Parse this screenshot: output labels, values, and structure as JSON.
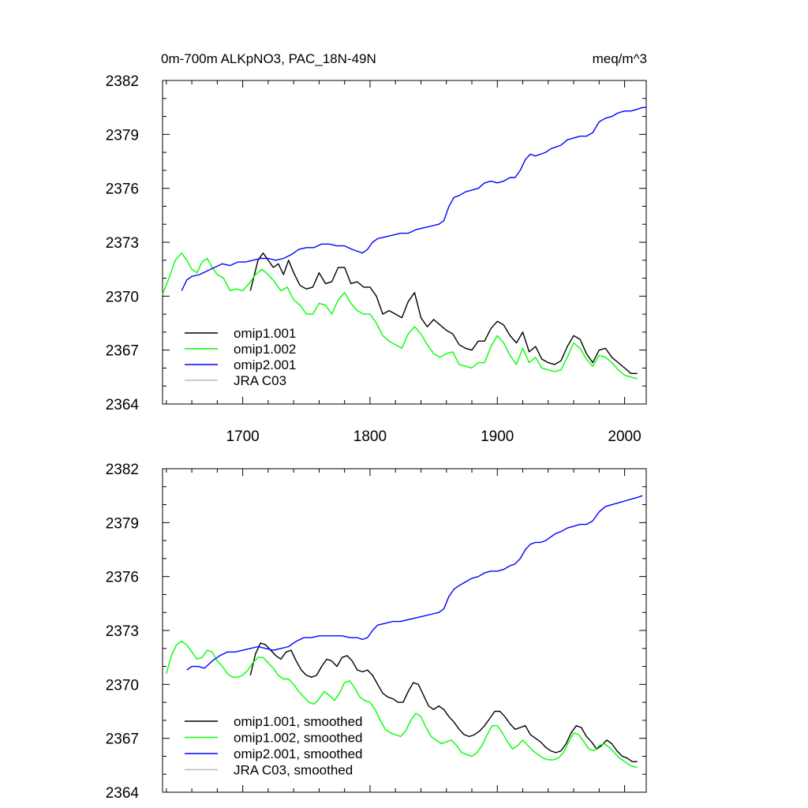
{
  "chart_data": [
    {
      "type": "line",
      "title": "0m-700m ALKpNO3, PAC_18N-49N",
      "units": "meq/m^3",
      "xlim": [
        1637,
        2017
      ],
      "ylim": [
        2364,
        2382
      ],
      "x_ticks": [
        "1700",
        "1800",
        "1900",
        "2000"
      ],
      "y_ticks": [
        "2364",
        "2367",
        "2370",
        "2373",
        "2376",
        "2379",
        "2382"
      ],
      "legend_position": "bottom-left",
      "series": [
        {
          "name": "omip1.001",
          "color": "#000000",
          "x": [
            1706,
            1712,
            1716,
            1720,
            1724,
            1728,
            1732,
            1736,
            1740,
            1745,
            1750,
            1755,
            1760,
            1765,
            1770,
            1775,
            1780,
            1785,
            1790,
            1795,
            1800,
            1805,
            1810,
            1815,
            1820,
            1825,
            1830,
            1835,
            1840,
            1845,
            1850,
            1855,
            1860,
            1865,
            1870,
            1875,
            1880,
            1885,
            1890,
            1895,
            1900,
            1905,
            1910,
            1915,
            1920,
            1925,
            1930,
            1935,
            1940,
            1945,
            1950,
            1955,
            1960,
            1965,
            1970,
            1975,
            1980,
            1985,
            1990,
            1995,
            2000,
            2005,
            2010
          ],
          "y": [
            2370.3,
            2372.0,
            2372.4,
            2372.0,
            2371.6,
            2371.8,
            2371.2,
            2372.0,
            2371.3,
            2370.6,
            2370.4,
            2370.5,
            2371.3,
            2370.7,
            2370.8,
            2371.6,
            2371.6,
            2370.7,
            2370.8,
            2370.5,
            2370.5,
            2370.0,
            2369.0,
            2369.2,
            2369.0,
            2368.8,
            2369.7,
            2370.2,
            2368.8,
            2368.3,
            2368.7,
            2368.4,
            2368.1,
            2367.9,
            2367.3,
            2367.1,
            2367.0,
            2367.5,
            2367.5,
            2368.2,
            2368.6,
            2368.4,
            2367.8,
            2367.4,
            2368.0,
            2366.9,
            2367.2,
            2366.5,
            2366.3,
            2366.2,
            2366.4,
            2367.2,
            2367.8,
            2367.6,
            2366.8,
            2366.3,
            2367.0,
            2367.1,
            2366.6,
            2366.3,
            2366.0,
            2365.7,
            2365.7
          ]
        },
        {
          "name": "omip1.002",
          "color": "#00ff00",
          "x": [
            1637,
            1642,
            1647,
            1652,
            1656,
            1660,
            1664,
            1668,
            1672,
            1676,
            1680,
            1685,
            1690,
            1695,
            1700,
            1705,
            1710,
            1715,
            1720,
            1725,
            1730,
            1735,
            1740,
            1745,
            1750,
            1755,
            1760,
            1765,
            1770,
            1775,
            1780,
            1785,
            1790,
            1795,
            1800,
            1805,
            1810,
            1815,
            1820,
            1825,
            1830,
            1835,
            1840,
            1845,
            1850,
            1855,
            1860,
            1865,
            1870,
            1875,
            1880,
            1885,
            1890,
            1895,
            1900,
            1905,
            1910,
            1915,
            1920,
            1925,
            1930,
            1935,
            1940,
            1945,
            1950,
            1955,
            1960,
            1965,
            1970,
            1975,
            1980,
            1985,
            1990,
            1995,
            2000,
            2005,
            2010
          ],
          "y": [
            2370.1,
            2371.0,
            2372.0,
            2372.4,
            2372.0,
            2371.5,
            2371.3,
            2371.9,
            2372.1,
            2371.6,
            2371.2,
            2371.0,
            2370.3,
            2370.4,
            2370.3,
            2370.7,
            2371.2,
            2371.5,
            2371.2,
            2370.8,
            2370.3,
            2370.5,
            2369.8,
            2369.5,
            2369.0,
            2369.0,
            2369.6,
            2369.5,
            2369.0,
            2369.8,
            2370.2,
            2369.6,
            2369.2,
            2369.0,
            2369.0,
            2368.5,
            2367.8,
            2367.5,
            2367.3,
            2367.1,
            2367.9,
            2368.3,
            2367.9,
            2367.3,
            2366.8,
            2366.6,
            2366.8,
            2366.9,
            2366.2,
            2366.1,
            2366.0,
            2366.3,
            2366.3,
            2367.2,
            2367.8,
            2367.4,
            2366.7,
            2366.2,
            2367.1,
            2366.3,
            2366.6,
            2366.0,
            2365.9,
            2365.8,
            2365.9,
            2366.6,
            2367.4,
            2367.1,
            2366.5,
            2366.1,
            2366.7,
            2366.6,
            2366.3,
            2365.9,
            2365.6,
            2365.5,
            2365.4
          ]
        },
        {
          "name": "omip2.001",
          "color": "#0000ff",
          "x": [
            1652,
            1656,
            1660,
            1666,
            1672,
            1678,
            1684,
            1690,
            1696,
            1702,
            1708,
            1714,
            1720,
            1726,
            1732,
            1738,
            1744,
            1750,
            1756,
            1762,
            1768,
            1774,
            1780,
            1786,
            1790,
            1794,
            1798,
            1802,
            1806,
            1812,
            1818,
            1824,
            1830,
            1836,
            1842,
            1848,
            1854,
            1858,
            1862,
            1866,
            1870,
            1875,
            1880,
            1885,
            1890,
            1895,
            1900,
            1905,
            1910,
            1914,
            1918,
            1922,
            1926,
            1930,
            1934,
            1938,
            1942,
            1946,
            1950,
            1955,
            1960,
            1965,
            1970,
            1975,
            1980,
            1985,
            1990,
            1995,
            2000,
            2005,
            2010,
            2014,
            2017
          ],
          "y": [
            2370.3,
            2370.9,
            2371.1,
            2371.2,
            2371.4,
            2371.6,
            2371.8,
            2371.7,
            2371.9,
            2371.9,
            2372.0,
            2372.1,
            2372.1,
            2372.0,
            2372.1,
            2372.3,
            2372.6,
            2372.7,
            2372.7,
            2372.9,
            2372.9,
            2372.8,
            2372.8,
            2372.6,
            2372.5,
            2372.4,
            2372.6,
            2373.0,
            2373.2,
            2373.3,
            2373.4,
            2373.5,
            2373.5,
            2373.7,
            2373.8,
            2373.9,
            2374.0,
            2374.2,
            2375.0,
            2375.5,
            2375.6,
            2375.8,
            2375.9,
            2376.0,
            2376.3,
            2376.4,
            2376.3,
            2376.4,
            2376.6,
            2376.6,
            2377.0,
            2377.6,
            2377.9,
            2377.8,
            2377.9,
            2378.0,
            2378.2,
            2378.3,
            2378.4,
            2378.7,
            2378.8,
            2378.9,
            2378.9,
            2379.1,
            2379.7,
            2379.9,
            2380.0,
            2380.2,
            2380.3,
            2380.3,
            2380.4,
            2380.5,
            2380.5
          ]
        },
        {
          "name": "JRA C03",
          "color": "#bbbbbb",
          "x": [],
          "y": []
        }
      ]
    },
    {
      "type": "line",
      "title": "",
      "xlim": [
        1637,
        2017
      ],
      "ylim": [
        2364,
        2382
      ],
      "y_ticks": [
        "2364",
        "2367",
        "2370",
        "2373",
        "2376",
        "2379",
        "2382"
      ],
      "legend_position": "bottom-left",
      "series": [
        {
          "name": "omip1.001, smoothed",
          "color": "#000000",
          "x": [
            1706,
            1710,
            1714,
            1718,
            1722,
            1726,
            1730,
            1734,
            1738,
            1742,
            1746,
            1750,
            1754,
            1758,
            1762,
            1766,
            1770,
            1774,
            1778,
            1782,
            1786,
            1790,
            1794,
            1798,
            1802,
            1806,
            1810,
            1814,
            1818,
            1822,
            1826,
            1830,
            1834,
            1838,
            1842,
            1846,
            1850,
            1854,
            1858,
            1862,
            1866,
            1870,
            1874,
            1878,
            1882,
            1886,
            1890,
            1894,
            1898,
            1902,
            1906,
            1910,
            1914,
            1918,
            1922,
            1926,
            1930,
            1934,
            1938,
            1942,
            1946,
            1950,
            1954,
            1958,
            1962,
            1966,
            1970,
            1974,
            1978,
            1982,
            1986,
            1990,
            1994,
            1998,
            2002,
            2006,
            2010
          ],
          "y": [
            2370.5,
            2371.7,
            2372.3,
            2372.2,
            2371.9,
            2371.6,
            2371.4,
            2371.8,
            2371.9,
            2371.3,
            2370.8,
            2370.5,
            2370.4,
            2370.5,
            2371.0,
            2371.4,
            2371.3,
            2371.0,
            2371.5,
            2371.6,
            2371.3,
            2370.8,
            2370.7,
            2370.8,
            2370.5,
            2370.0,
            2369.5,
            2369.3,
            2369.2,
            2369.0,
            2369.0,
            2369.6,
            2370.1,
            2370.0,
            2369.4,
            2368.8,
            2368.6,
            2368.8,
            2368.6,
            2368.2,
            2367.9,
            2367.5,
            2367.2,
            2367.1,
            2367.2,
            2367.4,
            2367.7,
            2368.1,
            2368.5,
            2368.5,
            2368.2,
            2367.8,
            2367.5,
            2367.6,
            2367.7,
            2367.2,
            2367.0,
            2366.8,
            2366.5,
            2366.3,
            2366.2,
            2366.3,
            2366.7,
            2367.3,
            2367.7,
            2367.6,
            2367.1,
            2366.8,
            2366.4,
            2366.6,
            2366.9,
            2366.7,
            2366.3,
            2366.0,
            2365.9,
            2365.7,
            2365.7
          ]
        },
        {
          "name": "omip1.002, smoothed",
          "color": "#00ff00",
          "x": [
            1640,
            1644,
            1648,
            1652,
            1656,
            1660,
            1664,
            1668,
            1672,
            1676,
            1680,
            1684,
            1688,
            1692,
            1696,
            1700,
            1704,
            1708,
            1712,
            1716,
            1720,
            1724,
            1728,
            1732,
            1736,
            1740,
            1744,
            1748,
            1752,
            1756,
            1760,
            1764,
            1768,
            1772,
            1776,
            1780,
            1784,
            1788,
            1792,
            1796,
            1800,
            1804,
            1808,
            1812,
            1816,
            1820,
            1824,
            1828,
            1832,
            1836,
            1840,
            1844,
            1848,
            1852,
            1856,
            1860,
            1864,
            1868,
            1872,
            1876,
            1880,
            1884,
            1888,
            1892,
            1896,
            1900,
            1904,
            1908,
            1912,
            1916,
            1920,
            1924,
            1928,
            1932,
            1936,
            1940,
            1944,
            1948,
            1952,
            1956,
            1960,
            1964,
            1968,
            1972,
            1976,
            1980,
            1984,
            1988,
            1992,
            1996,
            2000,
            2004,
            2008,
            2010
          ],
          "y": [
            2370.6,
            2371.6,
            2372.2,
            2372.4,
            2372.2,
            2371.8,
            2371.4,
            2371.5,
            2371.9,
            2371.8,
            2371.3,
            2371.0,
            2370.6,
            2370.4,
            2370.4,
            2370.5,
            2370.8,
            2371.2,
            2371.5,
            2371.5,
            2371.2,
            2370.9,
            2370.5,
            2370.3,
            2370.3,
            2370.0,
            2369.6,
            2369.3,
            2369.0,
            2368.9,
            2369.2,
            2369.6,
            2369.4,
            2369.1,
            2369.5,
            2370.1,
            2370.2,
            2369.8,
            2369.3,
            2369.1,
            2369.0,
            2368.6,
            2368.0,
            2367.5,
            2367.3,
            2367.2,
            2367.1,
            2367.4,
            2368.0,
            2368.4,
            2368.2,
            2367.6,
            2367.1,
            2366.9,
            2366.7,
            2366.8,
            2366.9,
            2366.6,
            2366.2,
            2366.1,
            2366.0,
            2366.2,
            2366.6,
            2367.2,
            2367.7,
            2367.7,
            2367.3,
            2366.8,
            2366.4,
            2366.6,
            2366.9,
            2366.6,
            2366.3,
            2366.1,
            2365.9,
            2365.8,
            2365.8,
            2365.9,
            2366.2,
            2366.8,
            2367.3,
            2367.2,
            2366.8,
            2366.4,
            2366.3,
            2366.6,
            2366.7,
            2366.5,
            2366.2,
            2365.9,
            2365.7,
            2365.5,
            2365.4,
            2365.4
          ]
        },
        {
          "name": "omip2.001, smoothed",
          "color": "#0000ff",
          "x": [
            1656,
            1660,
            1665,
            1670,
            1676,
            1682,
            1688,
            1694,
            1700,
            1706,
            1712,
            1718,
            1724,
            1730,
            1736,
            1742,
            1748,
            1754,
            1760,
            1766,
            1772,
            1778,
            1784,
            1790,
            1794,
            1798,
            1802,
            1806,
            1812,
            1818,
            1824,
            1830,
            1836,
            1842,
            1848,
            1854,
            1858,
            1862,
            1866,
            1870,
            1875,
            1880,
            1885,
            1890,
            1895,
            1900,
            1905,
            1910,
            1914,
            1918,
            1922,
            1926,
            1930,
            1934,
            1938,
            1942,
            1946,
            1950,
            1955,
            1960,
            1965,
            1970,
            1975,
            1980,
            1985,
            1990,
            1995,
            2000,
            2005,
            2010,
            2014
          ],
          "y": [
            2370.8,
            2371.0,
            2371.0,
            2370.9,
            2371.3,
            2371.6,
            2371.8,
            2371.8,
            2371.9,
            2372.0,
            2372.1,
            2372.0,
            2371.9,
            2372.0,
            2372.1,
            2372.4,
            2372.6,
            2372.6,
            2372.7,
            2372.7,
            2372.7,
            2372.7,
            2372.6,
            2372.6,
            2372.5,
            2372.6,
            2373.0,
            2373.3,
            2373.4,
            2373.5,
            2373.5,
            2373.6,
            2373.7,
            2373.8,
            2373.9,
            2374.0,
            2374.2,
            2374.9,
            2375.3,
            2375.5,
            2375.7,
            2375.9,
            2376.0,
            2376.2,
            2376.3,
            2376.3,
            2376.4,
            2376.6,
            2376.7,
            2377.0,
            2377.5,
            2377.8,
            2377.9,
            2377.9,
            2378.0,
            2378.2,
            2378.4,
            2378.5,
            2378.7,
            2378.8,
            2378.9,
            2378.9,
            2379.1,
            2379.6,
            2379.9,
            2380.0,
            2380.1,
            2380.2,
            2380.3,
            2380.4,
            2380.5
          ]
        },
        {
          "name": "JRA C03, smoothed",
          "color": "#bbbbbb",
          "x": [],
          "y": []
        }
      ]
    }
  ]
}
